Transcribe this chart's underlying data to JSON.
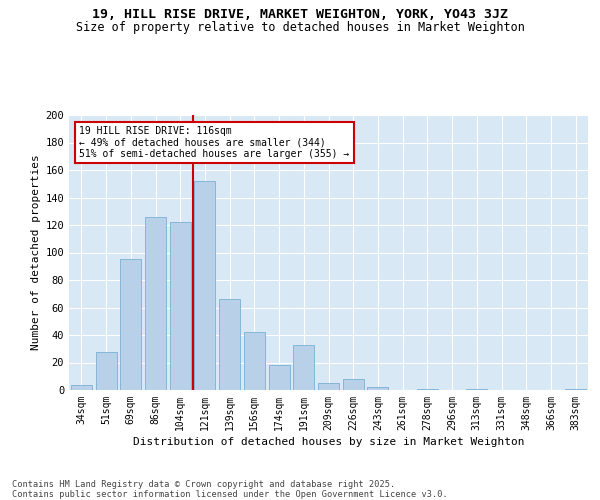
{
  "title1": "19, HILL RISE DRIVE, MARKET WEIGHTON, YORK, YO43 3JZ",
  "title2": "Size of property relative to detached houses in Market Weighton",
  "xlabel": "Distribution of detached houses by size in Market Weighton",
  "ylabel": "Number of detached properties",
  "categories": [
    "34sqm",
    "51sqm",
    "69sqm",
    "86sqm",
    "104sqm",
    "121sqm",
    "139sqm",
    "156sqm",
    "174sqm",
    "191sqm",
    "209sqm",
    "226sqm",
    "243sqm",
    "261sqm",
    "278sqm",
    "296sqm",
    "313sqm",
    "331sqm",
    "348sqm",
    "366sqm",
    "383sqm"
  ],
  "values": [
    4,
    28,
    95,
    126,
    122,
    152,
    66,
    42,
    18,
    33,
    5,
    8,
    2,
    0,
    1,
    0,
    1,
    0,
    0,
    0,
    1
  ],
  "bar_color": "#b8d0e8",
  "bar_edge_color": "#7aafd4",
  "vline_pos": 4.5,
  "vline_color": "#cc0000",
  "anno_title": "19 HILL RISE DRIVE: 116sqm",
  "anno_line1": "← 49% of detached houses are smaller (344)",
  "anno_line2": "51% of semi-detached houses are larger (355) →",
  "anno_box_fc": "#ffffff",
  "anno_box_ec": "#cc0000",
  "ylim": [
    0,
    200
  ],
  "yticks": [
    0,
    20,
    40,
    60,
    80,
    100,
    120,
    140,
    160,
    180,
    200
  ],
  "plot_bg": "#d8e8f5",
  "fig_bg": "#ffffff",
  "footer1": "Contains HM Land Registry data © Crown copyright and database right 2025.",
  "footer2": "Contains public sector information licensed under the Open Government Licence v3.0."
}
